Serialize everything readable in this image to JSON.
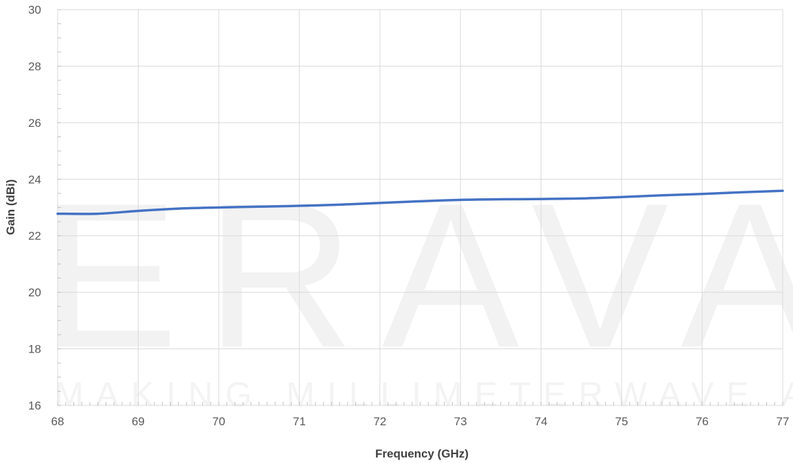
{
  "watermark": {
    "logo_text": "ERAVANT",
    "tagline": "MAKING MILLIMETERWAVE ACCESSIBLE"
  },
  "chart_data": {
    "type": "line",
    "xlabel": "Frequency (GHz)",
    "ylabel": "Gain (dBi)",
    "xlim": [
      68,
      77
    ],
    "ylim": [
      16,
      30
    ],
    "x_ticks": [
      68,
      69,
      70,
      71,
      72,
      73,
      74,
      75,
      76,
      77
    ],
    "y_ticks": [
      16,
      18,
      20,
      22,
      24,
      26,
      28,
      30
    ],
    "grid": true,
    "legend": false,
    "series": [
      {
        "color": "#4472c4",
        "x": [
          68,
          68.5,
          69,
          69.5,
          70,
          70.5,
          71,
          71.5,
          72,
          72.5,
          73,
          73.5,
          74,
          74.5,
          75,
          75.5,
          76,
          76.5,
          77
        ],
        "y": [
          22.78,
          22.78,
          22.88,
          22.96,
          23.0,
          23.03,
          23.06,
          23.1,
          23.16,
          23.22,
          23.27,
          23.29,
          23.3,
          23.32,
          23.37,
          23.43,
          23.48,
          23.54,
          23.59
        ]
      }
    ]
  }
}
